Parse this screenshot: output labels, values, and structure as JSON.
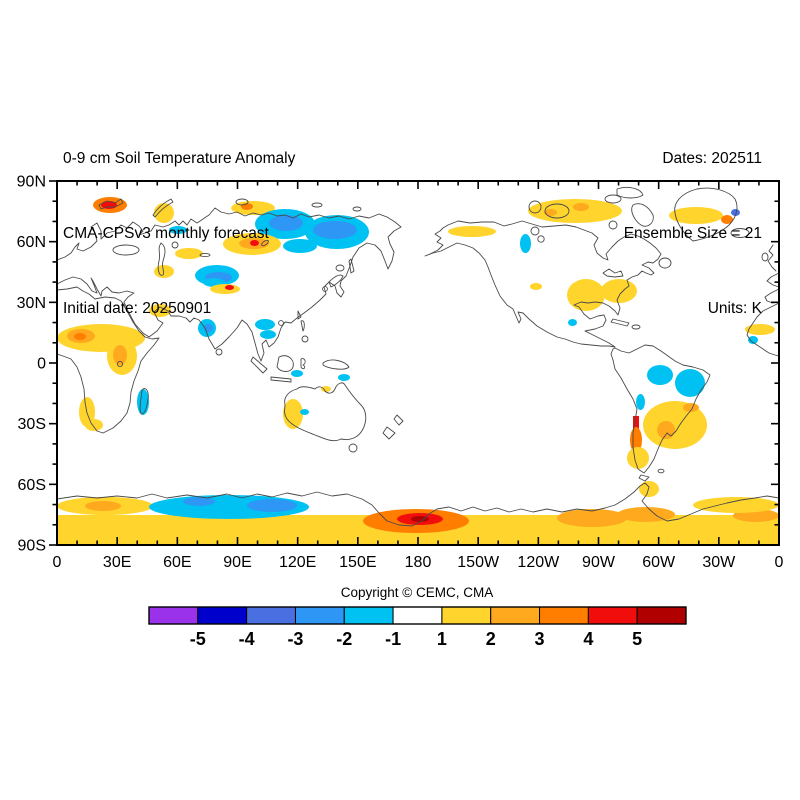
{
  "header": {
    "left": [
      "0-9 cm Soil Temperature Anomaly",
      "CMA-CPSv3 monthly forecast",
      "Initial date: 20250901"
    ],
    "right": [
      "Dates: 202511",
      "Ensemble Size = 21",
      "Units: K"
    ]
  },
  "copyright": "Copyright © CEMC, CMA",
  "axes": {
    "lat_labels": [
      "90N",
      "60N",
      "30N",
      "0",
      "30S",
      "60S",
      "90S"
    ],
    "lon_labels": [
      "0",
      "30E",
      "60E",
      "90E",
      "120E",
      "150E",
      "180",
      "150W",
      "120W",
      "90W",
      "60W",
      "30W",
      "0"
    ]
  },
  "colorbar": {
    "tick_labels": [
      "-5",
      "-4",
      "-3",
      "-2",
      "-1",
      "1",
      "2",
      "3",
      "4",
      "5"
    ],
    "colors": [
      "#9A32EB",
      "#0000CC",
      "#4A6FE0",
      "#2E96F5",
      "#00C2F2",
      "#FFFFFF",
      "#FFD42C",
      "#FFA91E",
      "#FF7E00",
      "#F20D0D",
      "#B00000"
    ]
  },
  "chart_data": {
    "type": "heatmap",
    "title": "0-9 cm Soil Temperature Anomaly",
    "model": "CMA-CPSv3 monthly forecast",
    "initial_date": "20250901",
    "valid_dates": "202511",
    "ensemble_size": 21,
    "units": "K",
    "projection": "equirectangular, Pacific-centered, lon 0E-360E left to right, lat 90N-90S top to bottom",
    "grid": false,
    "levels": [
      -5,
      -4,
      -3,
      -2,
      -1,
      1,
      2,
      3,
      4,
      5
    ],
    "legend": {
      "c1": {
        "color": "#FFD42C",
        "value": "+1 to +2 K"
      },
      "c2": {
        "color": "#FFA91E",
        "value": "+2 to +3 K"
      },
      "c3": {
        "color": "#FF7E00",
        "value": "+3 to +4 K"
      },
      "c4": {
        "color": "#F20D0D",
        "value": "+4 to +5 K"
      },
      "c5": {
        "color": "#B00000",
        "value": "> +5 K"
      },
      "m1": {
        "color": "#00C2F2",
        "value": "-2 to -1 K"
      },
      "m2": {
        "color": "#2E96F5",
        "value": "-3 to -2 K"
      },
      "m3": {
        "color": "#4A6FE0",
        "value": "-4 to -3 K"
      }
    },
    "regions": [
      [
        "svalbard-warm",
        "c3",
        "e",
        36,
        16,
        34,
        16
      ],
      [
        "svalbard-hot",
        "c4",
        "e",
        44,
        20,
        16,
        8
      ],
      [
        "novaya-zemlya-warm",
        "c1",
        "e",
        97,
        22,
        20,
        20
      ],
      [
        "severnaya-warm",
        "c1",
        "e",
        174,
        20,
        44,
        14
      ],
      [
        "severnaya-hot",
        "c3",
        "e",
        184,
        22,
        12,
        7
      ],
      [
        "taymyr-cold",
        "m1",
        "e",
        198,
        28,
        60,
        30
      ],
      [
        "taymyr-cold-core",
        "m2",
        "e",
        212,
        34,
        34,
        16
      ],
      [
        "ne-siberia-cold",
        "m1",
        "e",
        248,
        34,
        64,
        34
      ],
      [
        "ne-siberia-cold-core",
        "m2",
        "e",
        256,
        40,
        44,
        18
      ],
      [
        "yakutia-cold",
        "m1",
        "e",
        226,
        58,
        34,
        14
      ],
      [
        "central-siberia-warm",
        "c1",
        "e",
        166,
        52,
        58,
        22
      ],
      [
        "central-siberia-warm2",
        "c2",
        "e",
        182,
        57,
        30,
        11
      ],
      [
        "central-siberia-hot",
        "c4",
        "e",
        193,
        59,
        9,
        6
      ],
      [
        "west-siberia-cold",
        "m1",
        "e",
        112,
        45,
        18,
        8
      ],
      [
        "kazakhstan-warm",
        "c1",
        "e",
        118,
        67,
        28,
        11
      ],
      [
        "caspian-east-warm",
        "c1",
        "e",
        97,
        84,
        20,
        13
      ],
      [
        "central-asia-cold",
        "m1",
        "e",
        138,
        84,
        44,
        21
      ],
      [
        "central-asia-cold-core",
        "m2",
        "e",
        148,
        91,
        27,
        11
      ],
      [
        "tibet-cold",
        "m1",
        "e",
        146,
        97,
        22,
        9
      ],
      [
        "tibet-warm",
        "c1",
        "e",
        153,
        103,
        30,
        10
      ],
      [
        "tibet-hot",
        "c4",
        "e",
        168,
        104,
        9,
        5
      ],
      [
        "nw-india-cold",
        "m1",
        "e",
        141,
        138,
        18,
        18
      ],
      [
        "nw-india-cold-core",
        "m2",
        "e",
        147,
        143,
        9,
        8
      ],
      [
        "south-china-cold",
        "m1",
        "e",
        198,
        138,
        20,
        11
      ],
      [
        "south-china-cold2",
        "m1",
        "e",
        203,
        149,
        16,
        9
      ],
      [
        "iran-warm",
        "c1",
        "e",
        92,
        123,
        22,
        13
      ],
      [
        "sahel-warm",
        "c1",
        "e",
        0,
        143,
        88,
        28
      ],
      [
        "sahel-warm2",
        "c2",
        "e",
        10,
        148,
        28,
        14
      ],
      [
        "sahel-hot",
        "c3",
        "e",
        17,
        152,
        12,
        7
      ],
      [
        "ethiopia-warm",
        "c1",
        "e",
        50,
        156,
        30,
        38
      ],
      [
        "ethiopia-warm-core",
        "c2",
        "e",
        56,
        164,
        14,
        20
      ],
      [
        "sw-africa-warm",
        "c1",
        "e",
        22,
        216,
        16,
        30
      ],
      [
        "south-africa-warm",
        "c1",
        "e",
        28,
        238,
        18,
        12
      ],
      [
        "madagascar-cold",
        "m1",
        "e",
        80,
        208,
        12,
        26
      ],
      [
        "indonesia-cold",
        "m1",
        "e",
        234,
        189,
        12,
        7
      ],
      [
        "new-guinea-cold",
        "m1",
        "e",
        281,
        193,
        12,
        7
      ],
      [
        "west-australia-warm",
        "c1",
        "e",
        226,
        218,
        20,
        30
      ],
      [
        "australia-cold-speck",
        "m1",
        "e",
        243,
        228,
        9,
        6
      ],
      [
        "north-australia-warm",
        "c1",
        "e",
        264,
        205,
        10,
        6
      ],
      [
        "alaska-warm",
        "c1",
        "e",
        391,
        45,
        48,
        11
      ],
      [
        "west-canada-cold",
        "m1",
        "e",
        463,
        53,
        11,
        19
      ],
      [
        "arctic-canada-warm",
        "c1",
        "e",
        471,
        18,
        94,
        24
      ],
      [
        "arctic-canada-hot",
        "c2",
        "e",
        516,
        22,
        16,
        8
      ],
      [
        "arctic-canada-hot2",
        "c2",
        "e",
        487,
        28,
        13,
        7
      ],
      [
        "greenland-warm",
        "c1",
        "e",
        612,
        26,
        54,
        17
      ],
      [
        "greenland-east-hot",
        "c3",
        "e",
        664,
        34,
        12,
        9
      ],
      [
        "greenland-east-cold",
        "m3",
        "e",
        674,
        28,
        9,
        7
      ],
      [
        "central-us-warm",
        "c1",
        "e",
        510,
        98,
        38,
        32
      ],
      [
        "southeast-us-warm",
        "c1",
        "e",
        544,
        98,
        36,
        24
      ],
      [
        "west-us-warm",
        "c1",
        "e",
        473,
        102,
        12,
        7
      ],
      [
        "baja-cold",
        "m1",
        "e",
        511,
        138,
        9,
        7
      ],
      [
        "amazon-cold-west",
        "m1",
        "e",
        590,
        184,
        26,
        20
      ],
      [
        "amazon-cold-east",
        "m1",
        "e",
        618,
        188,
        30,
        28
      ],
      [
        "peru-cold",
        "m1",
        "e",
        579,
        213,
        9,
        16
      ],
      [
        "argentina-warm",
        "c1",
        "e",
        586,
        220,
        64,
        48
      ],
      [
        "argentina-warm-core",
        "c2",
        "e",
        600,
        240,
        18,
        18
      ],
      [
        "argentina-warm-core2",
        "c2",
        "e",
        626,
        222,
        16,
        9
      ],
      [
        "chile-hot",
        "c4",
        "r",
        576,
        235,
        6,
        27
      ],
      [
        "chile-orange",
        "c3",
        "e",
        573,
        246,
        12,
        26
      ],
      [
        "patagonia-warm",
        "c1",
        "e",
        570,
        266,
        22,
        22
      ],
      [
        "east-sahara-warm",
        "c1",
        "e",
        688,
        143,
        30,
        11
      ],
      [
        "west-africa-cold-speck",
        "m1",
        "e",
        691,
        155,
        10,
        8
      ],
      [
        "antarctica-warm-band",
        "c1",
        "r",
        0,
        334,
        722,
        30
      ],
      [
        "antarctica-left-warm",
        "c1",
        "e",
        0,
        316,
        96,
        18
      ],
      [
        "antarctica-left-hot",
        "c2",
        "e",
        28,
        320,
        36,
        10
      ],
      [
        "east-antarctica-cold",
        "m1",
        "e",
        92,
        314,
        160,
        24
      ],
      [
        "east-antarctica-cold-core",
        "m2",
        "e",
        190,
        318,
        50,
        13
      ],
      [
        "east-antarctica-cold-core2",
        "m2",
        "e",
        126,
        316,
        32,
        9
      ],
      [
        "ross-orange",
        "c3",
        "e",
        306,
        328,
        106,
        24
      ],
      [
        "ross-red",
        "c4",
        "e",
        340,
        332,
        46,
        12
      ],
      [
        "ross-dark-red",
        "c5",
        "e",
        354,
        335,
        18,
        6
      ],
      [
        "west-antarctica-orange",
        "c2",
        "e",
        500,
        328,
        70,
        18
      ],
      [
        "west-antarctica-orange2",
        "c2",
        "e",
        560,
        326,
        58,
        15
      ],
      [
        "right-antarctica-orange",
        "c2",
        "e",
        676,
        328,
        46,
        13
      ],
      [
        "antarctic-peninsula-warm",
        "c1",
        "e",
        582,
        300,
        20,
        16
      ],
      [
        "right-antarctica-warm",
        "c1",
        "e",
        636,
        316,
        86,
        16
      ]
    ]
  }
}
